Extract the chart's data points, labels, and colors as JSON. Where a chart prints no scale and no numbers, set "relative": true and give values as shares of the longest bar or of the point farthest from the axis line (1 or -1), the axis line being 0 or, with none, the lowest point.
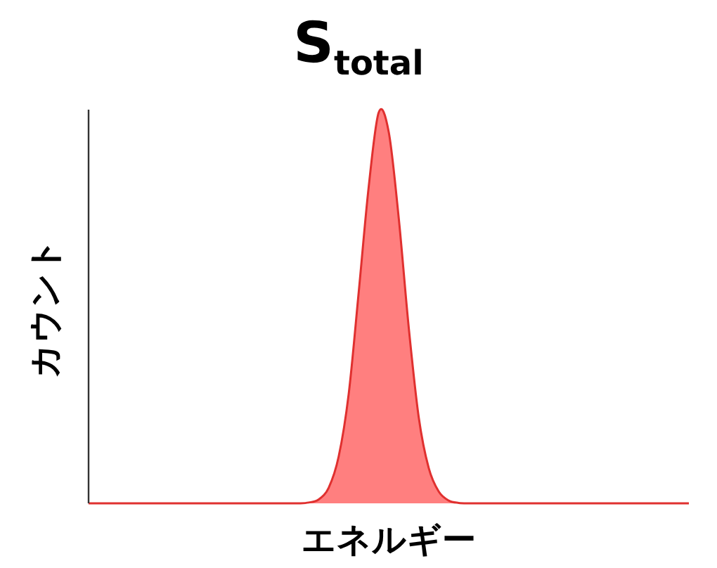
{
  "chart_data": {
    "type": "area",
    "title": "S$_{total}$",
    "xlabel": "エネルギー",
    "ylabel": "カウント",
    "relative": true,
    "color": "#ff7f7f",
    "categories": [
      null,
      null,
      null,
      null,
      null,
      null,
      null,
      null,
      null,
      null,
      null,
      null,
      null,
      null,
      null,
      null,
      null,
      null,
      null,
      null,
      null,
      null,
      null,
      null,
      null,
      null,
      null,
      null,
      null,
      null,
      null,
      null,
      null,
      null,
      null,
      null,
      null,
      null,
      null,
      null,
      null,
      null,
      null,
      null,
      null,
      null,
      null,
      null,
      null,
      null,
      null,
      null,
      null,
      null,
      null,
      null,
      null,
      null,
      null,
      null,
      null
    ],
    "values": [
      0,
      0,
      0,
      0,
      0,
      0,
      0,
      0,
      0,
      0,
      0,
      0,
      0,
      0,
      0,
      0,
      0,
      0,
      0,
      0,
      0,
      0,
      0.002,
      0.01,
      0.04,
      0.12,
      0.28,
      0.54,
      0.81,
      1,
      0.95,
      0.73,
      0.45,
      0.22,
      0.09,
      0.03,
      0.007,
      0.001,
      0,
      0,
      0,
      0,
      0,
      0,
      0,
      0,
      0,
      0,
      0,
      0,
      0,
      0,
      0,
      0,
      0,
      0,
      0,
      0,
      0,
      0,
      0
    ]
  }
}
